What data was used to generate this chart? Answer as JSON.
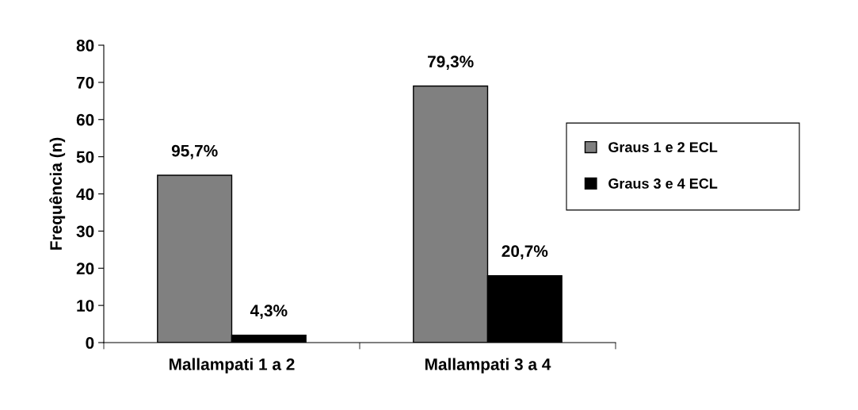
{
  "chart_data": {
    "type": "bar",
    "ylabel": "Frequência (n)",
    "categories": [
      "Mallampati 1 a 2",
      "Mallampati 3 a 4"
    ],
    "series": [
      {
        "name": "Graus 1 e 2 ECL",
        "color": "#808080",
        "values": [
          45,
          69
        ]
      },
      {
        "name": "Graus 3 e 4 ECL",
        "color": "#000000",
        "values": [
          2,
          18
        ]
      }
    ],
    "annotations": [
      {
        "text": "95,7%",
        "x": "Mallampati 1 a 2",
        "y": 45
      },
      {
        "text": "4,3%",
        "x": "Mallampati 1 a 2",
        "y": 2
      },
      {
        "text": "79,3%",
        "x": "Mallampati 3 a 4",
        "y": 69
      },
      {
        "text": "20,7%",
        "x": "Mallampati 3 a 4",
        "y": 18
      }
    ],
    "ylim": [
      0,
      80
    ],
    "yticks": [
      0,
      10,
      20,
      30,
      40,
      50,
      60,
      70,
      80
    ],
    "grid": false,
    "legend": "right"
  }
}
